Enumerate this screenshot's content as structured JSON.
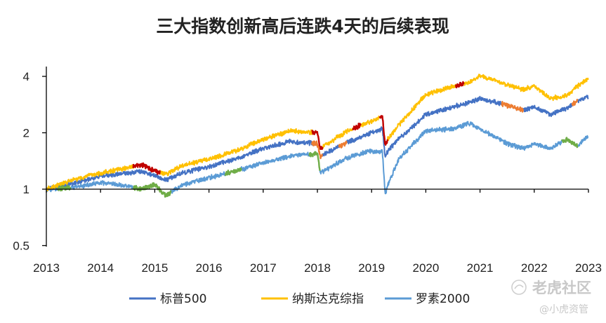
{
  "chart_data": {
    "type": "line",
    "title": "三大指数创新高后连跌4天的后续表现",
    "xlabel": "",
    "ylabel": "",
    "y_scale": "log",
    "ylim": [
      0.5,
      4.6
    ],
    "yticks": [
      0.5,
      1,
      2,
      4
    ],
    "ytick_labels": [
      "0.5",
      "1",
      "2",
      "4"
    ],
    "xlim": [
      2013,
      2023
    ],
    "xticks": [
      2013,
      2014,
      2015,
      2016,
      2017,
      2018,
      2019,
      2020,
      2021,
      2022,
      2023
    ],
    "xtick_labels": [
      "2013",
      "2014",
      "2015",
      "2016",
      "2017",
      "2018",
      "2019",
      "2020",
      "2021",
      "2022",
      "2023"
    ],
    "grid": false,
    "legend_position": "bottom",
    "series": [
      {
        "name": "纳斯达克综指",
        "color": "#FFC000",
        "x": [
          2013.0,
          2013.5,
          2014.0,
          2014.5,
          2014.75,
          2015.0,
          2015.2,
          2015.5,
          2016.0,
          2016.5,
          2017.0,
          2017.5,
          2018.0,
          2018.05,
          2018.5,
          2018.8,
          2019.0,
          2019.2,
          2019.25,
          2019.3,
          2019.5,
          2020.0,
          2020.5,
          2020.8,
          2021.0,
          2021.5,
          2021.8,
          2022.0,
          2022.3,
          2022.6,
          2022.8,
          2023.0
        ],
        "y": [
          1.0,
          1.12,
          1.22,
          1.3,
          1.35,
          1.25,
          1.2,
          1.33,
          1.45,
          1.6,
          1.85,
          2.05,
          2.0,
          1.65,
          2.0,
          2.2,
          2.3,
          2.45,
          1.7,
          1.85,
          2.2,
          3.2,
          3.55,
          3.7,
          4.05,
          3.6,
          3.4,
          3.55,
          3.05,
          3.15,
          3.55,
          3.9
        ]
      },
      {
        "name": "标普500",
        "color": "#4472C4",
        "x": [
          2013.0,
          2013.5,
          2014.0,
          2014.5,
          2014.75,
          2015.0,
          2015.2,
          2015.5,
          2016.0,
          2016.5,
          2017.0,
          2017.5,
          2018.0,
          2018.05,
          2018.5,
          2018.8,
          2019.0,
          2019.2,
          2019.25,
          2019.3,
          2019.5,
          2020.0,
          2020.5,
          2020.8,
          2021.0,
          2021.5,
          2021.8,
          2022.0,
          2022.3,
          2022.6,
          2022.8,
          2023.0
        ],
        "y": [
          1.0,
          1.08,
          1.17,
          1.22,
          1.25,
          1.18,
          1.12,
          1.22,
          1.32,
          1.45,
          1.65,
          1.8,
          1.75,
          1.5,
          1.75,
          1.9,
          2.0,
          2.1,
          1.5,
          1.6,
          1.85,
          2.5,
          2.75,
          2.9,
          3.05,
          2.8,
          2.65,
          2.75,
          2.5,
          2.7,
          2.95,
          3.1
        ]
      },
      {
        "name": "罗素2000",
        "color": "#5B9BD5",
        "x": [
          2013.0,
          2013.5,
          2014.0,
          2014.5,
          2014.75,
          2015.0,
          2015.2,
          2015.5,
          2016.0,
          2016.5,
          2017.0,
          2017.5,
          2018.0,
          2018.05,
          2018.5,
          2018.8,
          2019.0,
          2019.2,
          2019.25,
          2019.3,
          2019.5,
          2020.0,
          2020.5,
          2020.8,
          2021.0,
          2021.5,
          2021.8,
          2022.0,
          2022.3,
          2022.6,
          2022.8,
          2023.0
        ],
        "y": [
          1.0,
          1.02,
          1.08,
          1.04,
          1.0,
          1.06,
          0.92,
          1.05,
          1.15,
          1.25,
          1.38,
          1.5,
          1.55,
          1.22,
          1.45,
          1.55,
          1.6,
          1.58,
          0.93,
          1.05,
          1.45,
          2.05,
          2.1,
          2.25,
          2.1,
          1.75,
          1.65,
          1.75,
          1.65,
          1.85,
          1.7,
          1.95
        ]
      }
    ],
    "highlight_segments": [
      {
        "series": "纳斯达克综指",
        "color": "#C00000",
        "x_range": [
          2014.6,
          2015.1
        ]
      },
      {
        "series": "纳斯达克综指",
        "color": "#C00000",
        "x_range": [
          2017.9,
          2018.1
        ]
      },
      {
        "series": "纳斯达克综指",
        "color": "#C00000",
        "x_range": [
          2018.65,
          2018.8
        ]
      },
      {
        "series": "纳斯达克综指",
        "color": "#C00000",
        "x_range": [
          2019.15,
          2019.3
        ]
      },
      {
        "series": "纳斯达克综指",
        "color": "#C00000",
        "x_range": [
          2020.55,
          2020.7
        ]
      },
      {
        "series": "标普500",
        "color": "#ED7D31",
        "x_range": [
          2017.9,
          2018.1
        ]
      },
      {
        "series": "标普500",
        "color": "#ED7D31",
        "x_range": [
          2018.4,
          2018.55
        ]
      },
      {
        "series": "标普500",
        "color": "#ED7D31",
        "x_range": [
          2021.4,
          2021.8
        ]
      },
      {
        "series": "标普500",
        "color": "#ED7D31",
        "x_range": [
          2022.7,
          2022.8
        ]
      },
      {
        "series": "罗素2000",
        "color": "#70AD47",
        "x_range": [
          2013.2,
          2013.45
        ]
      },
      {
        "series": "罗素2000",
        "color": "#70AD47",
        "x_range": [
          2014.6,
          2015.3
        ]
      },
      {
        "series": "罗素2000",
        "color": "#70AD47",
        "x_range": [
          2016.3,
          2016.6
        ]
      },
      {
        "series": "罗素2000",
        "color": "#70AD47",
        "x_range": [
          2017.85,
          2018.05
        ]
      },
      {
        "series": "罗素2000",
        "color": "#70AD47",
        "x_range": [
          2022.5,
          2022.8
        ]
      }
    ]
  },
  "legend": [
    {
      "label": "标普500",
      "color": "#4472C4"
    },
    {
      "label": "纳斯达克综指",
      "color": "#FFC000"
    },
    {
      "label": "罗素2000",
      "color": "#5B9BD5"
    }
  ],
  "watermark": {
    "brand": "老虎社区",
    "handle": "@小虎资管"
  }
}
